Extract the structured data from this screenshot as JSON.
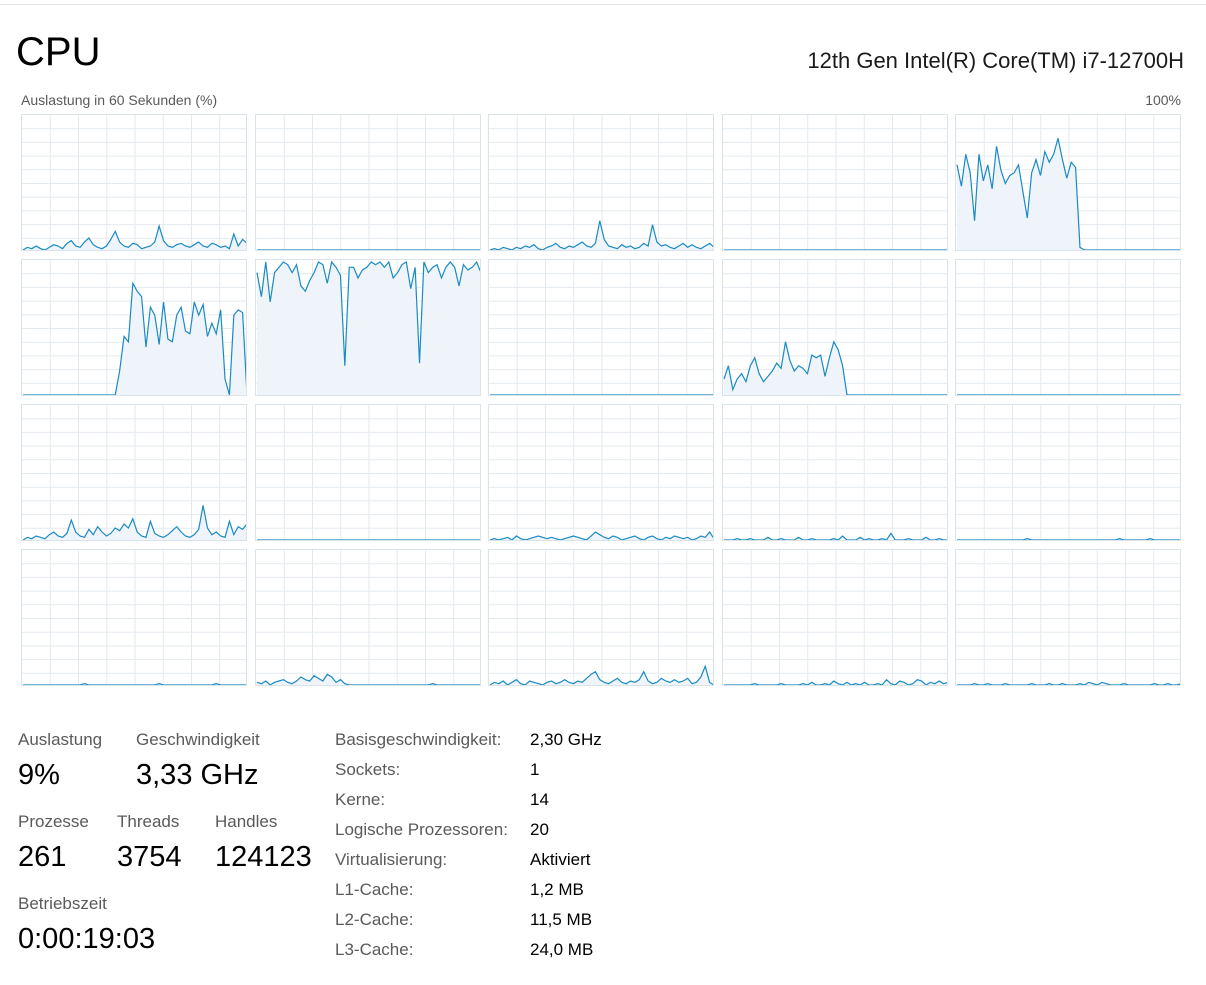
{
  "header": {
    "title": "CPU",
    "cpu_model": "12th Gen Intel(R) Core(TM) i7-12700H"
  },
  "chart": {
    "caption": "Auslastung in 60 Sekunden (%)",
    "max_label": "100%",
    "line_color": "#1a8ac4",
    "fill_color": "#eef4fa",
    "grid_color": "#e3eaef"
  },
  "stats": {
    "auslastung": {
      "label": "Auslastung",
      "value": "9%"
    },
    "geschwindigkeit": {
      "label": "Geschwindigkeit",
      "value": "3,33 GHz"
    },
    "prozesse": {
      "label": "Prozesse",
      "value": "261"
    },
    "threads": {
      "label": "Threads",
      "value": "3754"
    },
    "handles": {
      "label": "Handles",
      "value": "124123"
    },
    "betriebszeit": {
      "label": "Betriebszeit",
      "value": "0:00:19:03"
    }
  },
  "info": [
    {
      "label": "Basisgeschwindigkeit:",
      "value": "2,30 GHz"
    },
    {
      "label": "Sockets:",
      "value": "1"
    },
    {
      "label": "Kerne:",
      "value": "14"
    },
    {
      "label": "Logische Prozessoren:",
      "value": "20"
    },
    {
      "label": "Virtualisierung:",
      "value": "Aktiviert"
    },
    {
      "label": "L1-Cache:",
      "value": "1,2 MB"
    },
    {
      "label": "L2-Cache:",
      "value": "11,5 MB"
    },
    {
      "label": "L3-Cache:",
      "value": "24,0 MB"
    }
  ],
  "chart_data": [
    {
      "type": "area",
      "series": [
        {
          "values": [
            0,
            2,
            1,
            3,
            1,
            0,
            2,
            4,
            3,
            1,
            5,
            7,
            3,
            2,
            6,
            9,
            4,
            2,
            1,
            3,
            8,
            14,
            6,
            3,
            2,
            5,
            4,
            1,
            2,
            3,
            6,
            18,
            7,
            3,
            2,
            4,
            5,
            3,
            2,
            4,
            6,
            3,
            2,
            5,
            4,
            2,
            3,
            1,
            12,
            3,
            8,
            5
          ]
        }
      ]
    },
    {
      "type": "area",
      "series": [
        {
          "values": [
            0,
            0,
            0,
            0,
            0,
            0,
            0,
            0,
            0,
            0,
            0,
            0,
            0,
            0,
            0,
            0,
            0,
            0,
            0,
            0,
            0,
            0,
            0,
            0,
            0,
            0,
            0,
            0,
            0,
            0,
            0,
            0,
            0,
            0,
            0,
            0,
            0,
            0,
            0,
            0,
            0,
            0,
            0,
            0,
            0,
            0,
            0,
            0,
            0,
            0,
            0,
            0
          ]
        }
      ]
    },
    {
      "type": "area",
      "series": [
        {
          "values": [
            0,
            1,
            0,
            2,
            1,
            0,
            2,
            1,
            3,
            2,
            4,
            1,
            0,
            2,
            3,
            5,
            2,
            1,
            3,
            2,
            4,
            6,
            3,
            2,
            5,
            22,
            8,
            3,
            2,
            1,
            4,
            2,
            3,
            1,
            2,
            5,
            3,
            19,
            6,
            3,
            4,
            2,
            1,
            3,
            5,
            2,
            4,
            2,
            1,
            3,
            5,
            2
          ]
        }
      ]
    },
    {
      "type": "area",
      "series": [
        {
          "values": [
            0,
            0,
            0,
            0,
            0,
            0,
            0,
            0,
            0,
            0,
            0,
            0,
            0,
            0,
            0,
            0,
            0,
            0,
            0,
            0,
            0,
            0,
            0,
            0,
            0,
            0,
            0,
            0,
            0,
            0,
            0,
            0,
            0,
            0,
            0,
            0,
            0,
            0,
            0,
            0,
            0,
            0,
            0,
            0,
            0,
            0,
            0,
            0,
            0,
            0,
            0,
            0
          ]
        }
      ]
    },
    {
      "type": "area",
      "series": [
        {
          "values": [
            64,
            48,
            72,
            58,
            22,
            72,
            52,
            64,
            46,
            78,
            60,
            50,
            56,
            58,
            64,
            44,
            24,
            58,
            68,
            56,
            74,
            66,
            72,
            84,
            68,
            54,
            66,
            62,
            2,
            0,
            0,
            0,
            0,
            0,
            0,
            0,
            0,
            0,
            0,
            0,
            0,
            0,
            0,
            0,
            0,
            0,
            0,
            0,
            0,
            0,
            0,
            0
          ]
        }
      ]
    },
    {
      "type": "area",
      "series": [
        {
          "values": [
            0,
            0,
            0,
            0,
            0,
            0,
            0,
            0,
            0,
            0,
            0,
            0,
            0,
            0,
            0,
            0,
            0,
            0,
            0,
            0,
            0,
            0,
            18,
            44,
            40,
            84,
            78,
            74,
            36,
            66,
            60,
            38,
            70,
            42,
            40,
            60,
            66,
            48,
            46,
            70,
            60,
            68,
            44,
            54,
            46,
            64,
            12,
            0,
            60,
            64,
            62,
            0
          ]
        }
      ]
    },
    {
      "type": "area",
      "series": [
        {
          "values": [
            92,
            74,
            100,
            70,
            92,
            96,
            100,
            98,
            92,
            98,
            82,
            78,
            86,
            92,
            100,
            98,
            84,
            100,
            96,
            90,
            22,
            96,
            96,
            88,
            94,
            96,
            100,
            98,
            100,
            96,
            100,
            88,
            92,
            98,
            100,
            80,
            96,
            24,
            100,
            92,
            96,
            98,
            88,
            96,
            100,
            96,
            82,
            98,
            94,
            96,
            100,
            92
          ]
        }
      ]
    },
    {
      "type": "area",
      "series": [
        {
          "values": [
            0,
            0,
            0,
            0,
            0,
            0,
            0,
            0,
            0,
            0,
            0,
            0,
            0,
            0,
            0,
            0,
            0,
            0,
            0,
            0,
            0,
            0,
            0,
            0,
            0,
            0,
            0,
            0,
            0,
            0,
            0,
            0,
            0,
            0,
            0,
            0,
            0,
            0,
            0,
            0,
            0,
            0,
            0,
            0,
            0,
            0,
            0,
            0,
            0,
            0,
            0,
            0
          ]
        }
      ]
    },
    {
      "type": "area",
      "series": [
        {
          "values": [
            12,
            22,
            4,
            12,
            16,
            10,
            22,
            28,
            16,
            10,
            14,
            18,
            24,
            20,
            40,
            26,
            18,
            22,
            20,
            16,
            30,
            28,
            30,
            14,
            28,
            40,
            34,
            22,
            0,
            0,
            0,
            0,
            0,
            0,
            0,
            0,
            0,
            0,
            0,
            0,
            0,
            0,
            0,
            0,
            0,
            0,
            0,
            0,
            0,
            0,
            0,
            0
          ]
        }
      ]
    },
    {
      "type": "area",
      "series": [
        {
          "values": [
            0,
            0,
            0,
            0,
            0,
            0,
            0,
            0,
            0,
            0,
            0,
            0,
            0,
            0,
            0,
            0,
            0,
            0,
            0,
            0,
            0,
            0,
            0,
            0,
            0,
            0,
            0,
            0,
            0,
            0,
            0,
            0,
            0,
            0,
            0,
            0,
            0,
            0,
            0,
            0,
            0,
            0,
            0,
            0,
            0,
            0,
            0,
            0,
            0,
            0,
            0,
            0
          ]
        }
      ]
    },
    {
      "type": "area",
      "series": [
        {
          "values": [
            0,
            2,
            1,
            3,
            2,
            1,
            4,
            6,
            3,
            2,
            5,
            15,
            6,
            3,
            2,
            8,
            4,
            10,
            6,
            3,
            5,
            9,
            7,
            12,
            9,
            16,
            6,
            3,
            2,
            14,
            5,
            3,
            2,
            4,
            7,
            10,
            6,
            3,
            2,
            4,
            8,
            26,
            9,
            4,
            6,
            3,
            2,
            14,
            4,
            10,
            8,
            12
          ]
        }
      ]
    },
    {
      "type": "area",
      "series": [
        {
          "values": [
            0,
            0,
            0,
            0,
            0,
            0,
            0,
            0,
            0,
            0,
            0,
            0,
            0,
            0,
            0,
            0,
            0,
            0,
            0,
            0,
            0,
            0,
            0,
            0,
            0,
            0,
            0,
            0,
            0,
            0,
            0,
            0,
            0,
            0,
            0,
            0,
            0,
            0,
            0,
            0,
            0,
            0,
            0,
            0,
            0,
            0,
            0,
            0,
            0,
            0,
            0,
            0
          ]
        }
      ]
    },
    {
      "type": "area",
      "series": [
        {
          "values": [
            0,
            1,
            0,
            1,
            2,
            0,
            3,
            1,
            0,
            1,
            2,
            3,
            2,
            1,
            2,
            1,
            0,
            1,
            2,
            3,
            2,
            1,
            0,
            3,
            6,
            4,
            2,
            1,
            3,
            2,
            0,
            1,
            2,
            3,
            1,
            0,
            2,
            3,
            1,
            0,
            2,
            1,
            3,
            2,
            1,
            2,
            0,
            1,
            3,
            2,
            6,
            1
          ]
        }
      ]
    },
    {
      "type": "area",
      "series": [
        {
          "values": [
            0,
            0,
            0,
            1,
            0,
            0,
            1,
            0,
            0,
            0,
            2,
            0,
            0,
            1,
            0,
            0,
            0,
            2,
            0,
            0,
            1,
            0,
            0,
            0,
            0,
            1,
            0,
            3,
            0,
            0,
            0,
            2,
            0,
            1,
            0,
            0,
            1,
            0,
            5,
            0,
            0,
            0,
            1,
            0,
            0,
            0,
            2,
            0,
            0,
            1,
            0,
            0
          ]
        }
      ]
    },
    {
      "type": "area",
      "series": [
        {
          "values": [
            0,
            0,
            0,
            0,
            0,
            0,
            0,
            0,
            0,
            0,
            0,
            0,
            0,
            0,
            0,
            0,
            1,
            0,
            0,
            0,
            0,
            0,
            0,
            0,
            0,
            0,
            0,
            0,
            0,
            0,
            0,
            0,
            0,
            0,
            0,
            0,
            0,
            1,
            0,
            0,
            0,
            0,
            0,
            0,
            1,
            0,
            0,
            0,
            0,
            0,
            0,
            0
          ]
        }
      ]
    },
    {
      "type": "area",
      "series": [
        {
          "values": [
            0,
            0,
            0,
            0,
            0,
            0,
            0,
            0,
            0,
            0,
            0,
            0,
            0,
            0,
            1,
            0,
            0,
            0,
            0,
            0,
            0,
            0,
            0,
            0,
            0,
            0,
            0,
            0,
            0,
            0,
            0,
            1,
            0,
            0,
            0,
            0,
            0,
            0,
            0,
            0,
            0,
            0,
            0,
            0,
            1,
            0,
            0,
            0,
            0,
            0,
            0,
            0
          ]
        }
      ]
    },
    {
      "type": "area",
      "series": [
        {
          "values": [
            2,
            1,
            3,
            0,
            2,
            3,
            4,
            2,
            1,
            3,
            6,
            4,
            3,
            7,
            5,
            3,
            8,
            6,
            2,
            4,
            1,
            0,
            0,
            0,
            0,
            0,
            0,
            0,
            0,
            0,
            0,
            0,
            0,
            0,
            0,
            0,
            0,
            0,
            0,
            0,
            1,
            0,
            0,
            0,
            0,
            0,
            0,
            0,
            0,
            0,
            0,
            0
          ]
        }
      ]
    },
    {
      "type": "area",
      "series": [
        {
          "values": [
            0,
            2,
            1,
            3,
            0,
            2,
            4,
            1,
            0,
            3,
            2,
            1,
            0,
            2,
            3,
            1,
            2,
            4,
            2,
            1,
            3,
            2,
            5,
            8,
            10,
            4,
            2,
            1,
            3,
            5,
            2,
            1,
            3,
            2,
            4,
            10,
            3,
            1,
            2,
            5,
            3,
            2,
            4,
            2,
            3,
            5,
            1,
            2,
            6,
            14,
            2,
            0
          ]
        }
      ]
    },
    {
      "type": "area",
      "series": [
        {
          "values": [
            0,
            0,
            0,
            0,
            0,
            0,
            0,
            1,
            0,
            0,
            0,
            0,
            0,
            1,
            0,
            0,
            0,
            0,
            1,
            0,
            2,
            0,
            0,
            1,
            0,
            3,
            1,
            0,
            2,
            0,
            1,
            0,
            2,
            0,
            0,
            1,
            0,
            4,
            1,
            0,
            3,
            2,
            0,
            1,
            4,
            3,
            0,
            2,
            1,
            3,
            1,
            2
          ]
        }
      ]
    },
    {
      "type": "area",
      "series": [
        {
          "values": [
            0,
            0,
            0,
            0,
            1,
            0,
            0,
            1,
            0,
            0,
            0,
            1,
            0,
            0,
            0,
            0,
            0,
            1,
            0,
            0,
            0,
            1,
            0,
            0,
            1,
            0,
            0,
            0,
            1,
            0,
            2,
            1,
            0,
            2,
            1,
            0,
            0,
            0,
            1,
            0,
            0,
            0,
            0,
            0,
            0,
            1,
            0,
            0,
            1,
            0,
            0,
            1
          ]
        }
      ]
    }
  ]
}
